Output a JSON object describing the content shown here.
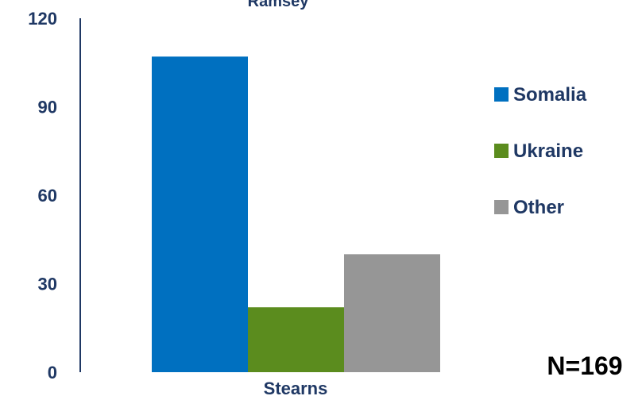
{
  "chart_data": {
    "type": "bar",
    "title": "Ramsey",
    "categories": [
      "Stearns"
    ],
    "series": [
      {
        "name": "Somalia",
        "values": [
          107
        ],
        "color": "#0070c0"
      },
      {
        "name": "Ukraine",
        "values": [
          22
        ],
        "color": "#5b8c1e"
      },
      {
        "name": "Other",
        "values": [
          40
        ],
        "color": "#969696"
      }
    ],
    "ylim": [
      0,
      120
    ],
    "yticks": [
      "0",
      "30",
      "60",
      "90",
      "120"
    ],
    "xlabel": "",
    "ylabel": "",
    "grid": false,
    "legend_position": "right",
    "annotation": "N=169"
  }
}
